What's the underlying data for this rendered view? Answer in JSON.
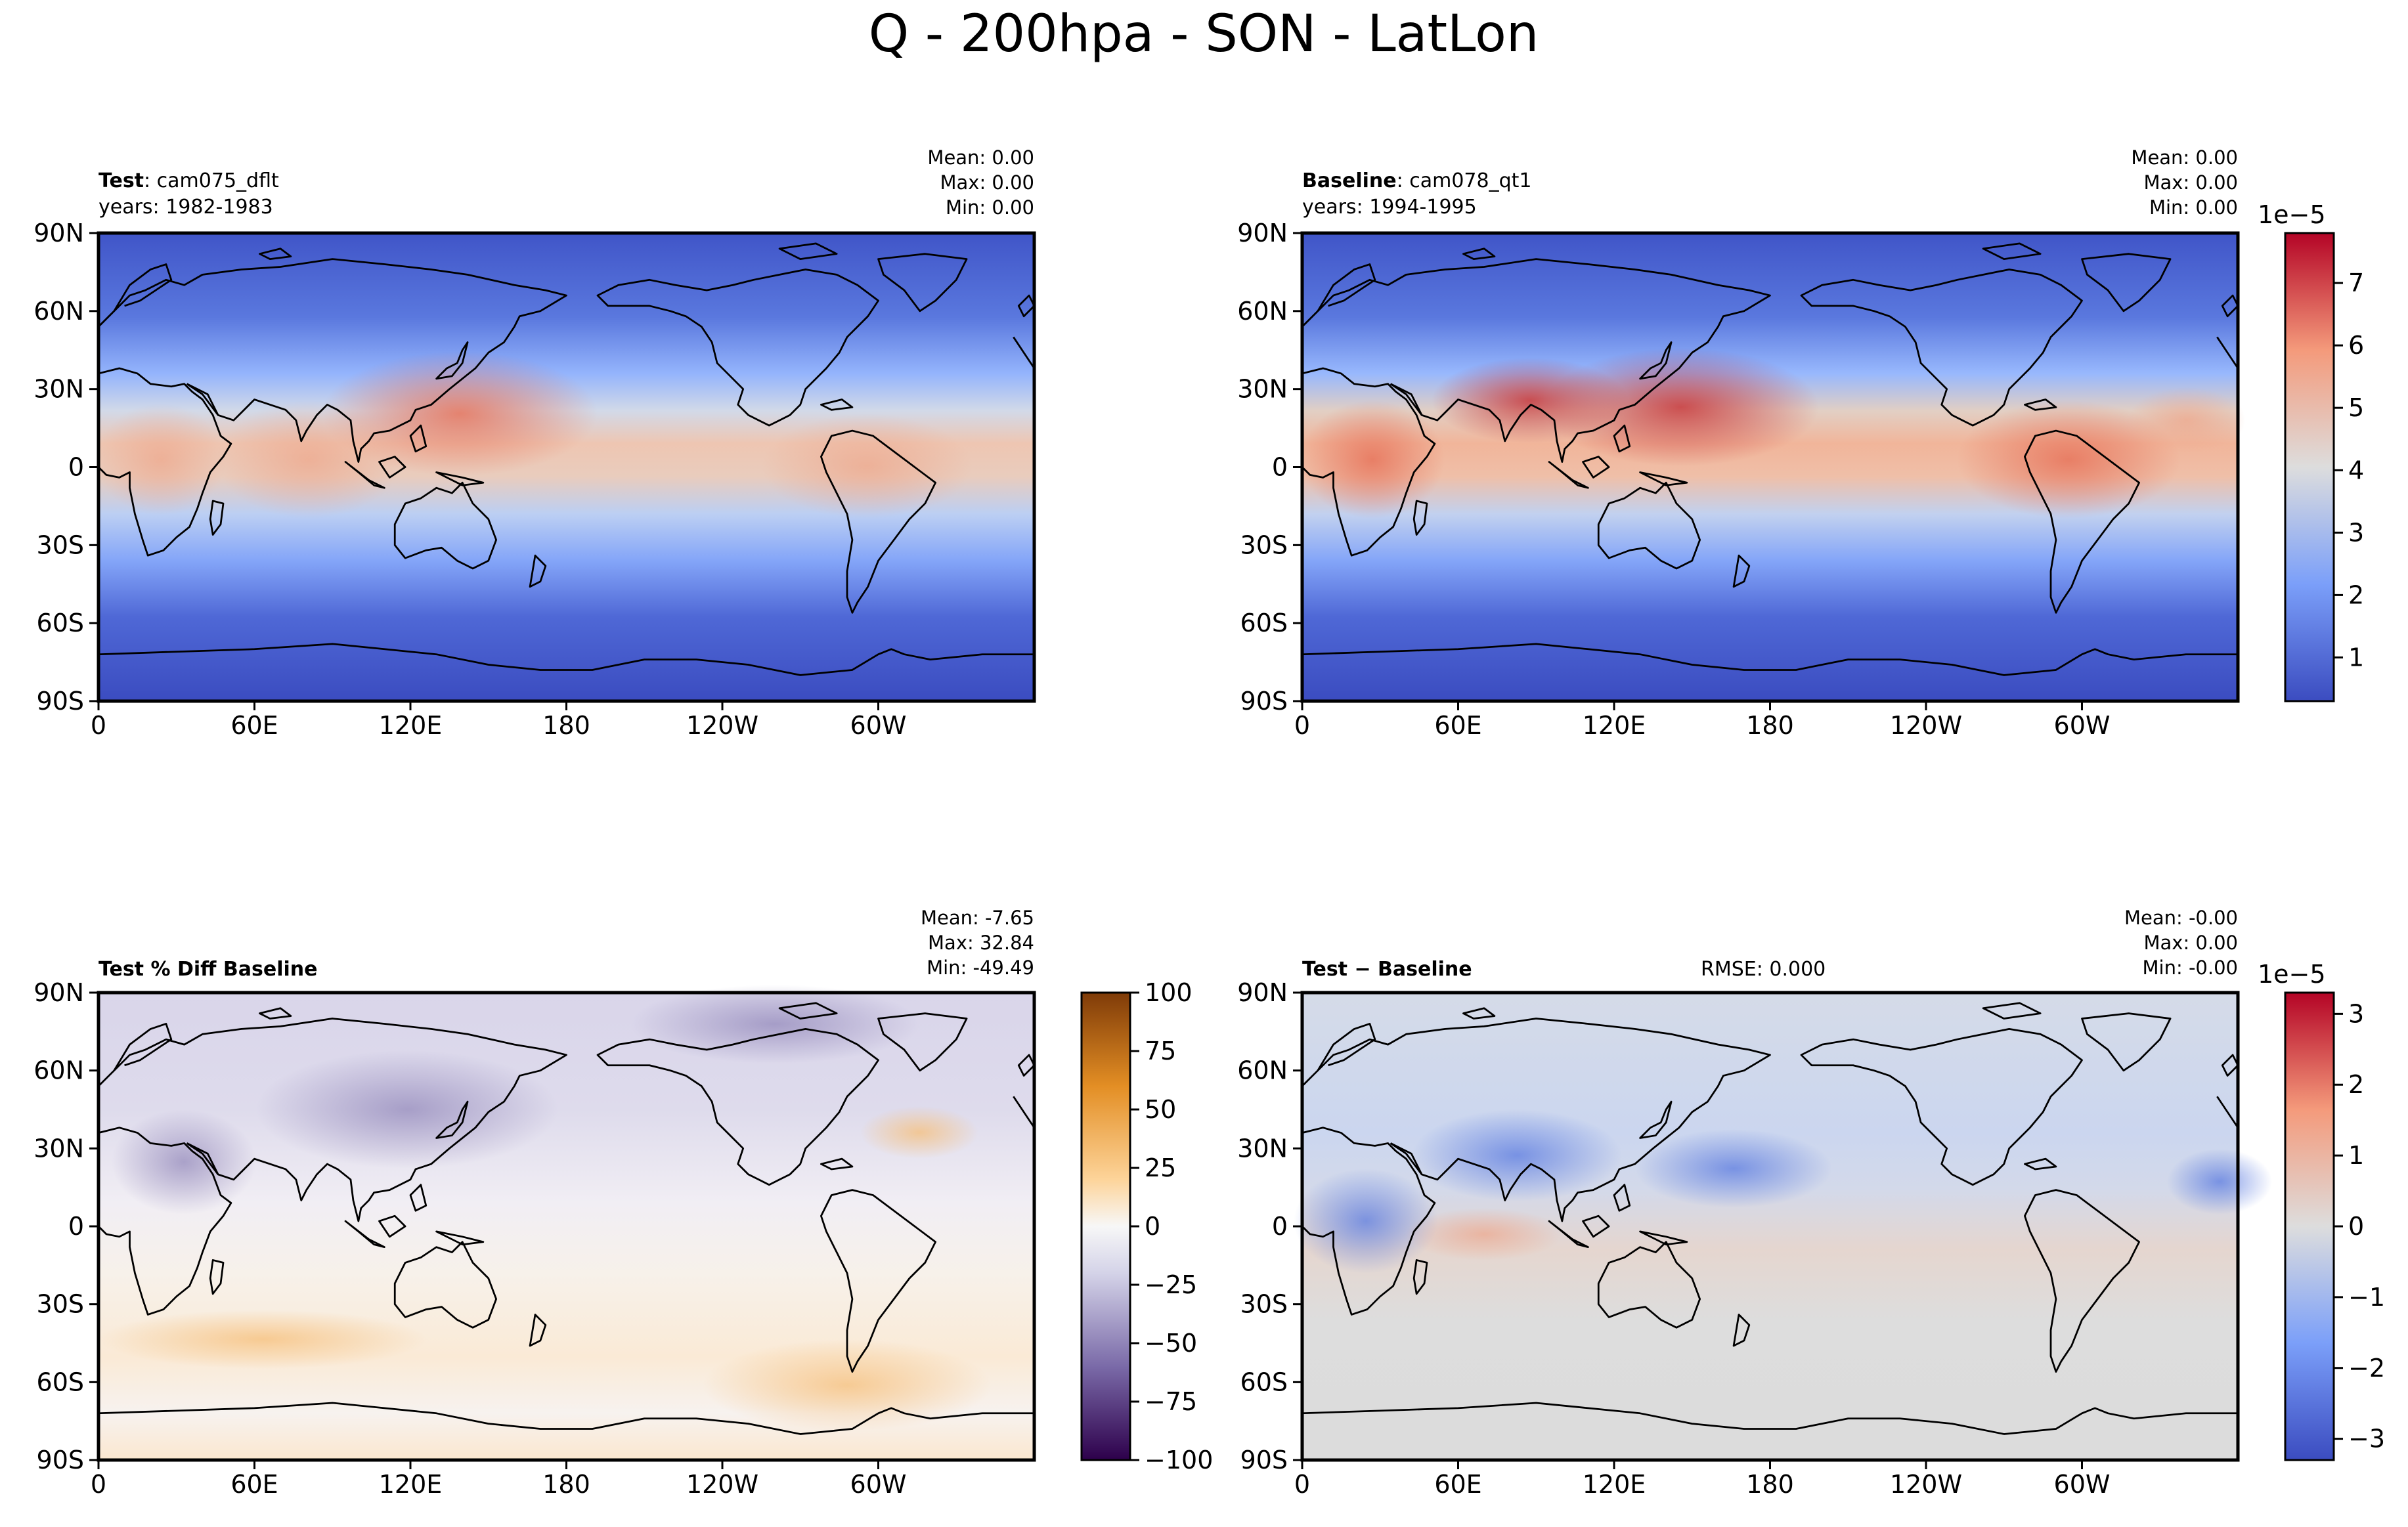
{
  "figure": {
    "title": "Q - 200hpa - SON - LatLon"
  },
  "panels": [
    {
      "id": "test",
      "label_bold": "Test",
      "label_rest": ": cam075_dflt",
      "years": "years: 1982-1983",
      "stats": [
        "Mean:  0.00",
        "Max:  0.00",
        "Min:  0.00"
      ]
    },
    {
      "id": "baseline",
      "label_bold": "Baseline",
      "label_rest": ": cam078_qt1",
      "years": "years: 1994-1995",
      "stats": [
        "Mean:  0.00",
        "Max:  0.00",
        "Min:  0.00"
      ]
    },
    {
      "id": "pctdiff",
      "label_bold": "Test % Diff Baseline",
      "label_rest": "",
      "years": "",
      "stats": [
        "Mean: -7.65",
        "Max: 32.84",
        "Min: -49.49"
      ]
    },
    {
      "id": "diff",
      "label_bold": "Test − Baseline",
      "label_rest": "",
      "years": "",
      "rmse": "RMSE: 0.000",
      "stats": [
        "Mean: -0.00",
        "Max:  0.00",
        "Min: -0.00"
      ]
    }
  ],
  "colorbars": {
    "field": {
      "scale_label": "1e−5",
      "ticks": [
        1,
        2,
        3,
        4,
        5,
        6,
        7
      ],
      "tick_labels": [
        "1",
        "2",
        "3",
        "4",
        "5",
        "6",
        "7"
      ],
      "range": [
        0.3,
        7.8
      ],
      "colormap": "coolwarm"
    },
    "pctdiff": {
      "scale_label": "",
      "ticks": [
        -100,
        -75,
        -50,
        -25,
        0,
        25,
        50,
        75,
        100
      ],
      "tick_labels": [
        "−100",
        "−75",
        "−50",
        "−25",
        "0",
        "25",
        "50",
        "75",
        "100"
      ],
      "range": [
        -100,
        100
      ],
      "colormap": "PuOr_r"
    },
    "diff": {
      "scale_label": "1e−5",
      "ticks": [
        -3,
        -2,
        -1,
        0,
        1,
        2,
        3
      ],
      "tick_labels": [
        "−3",
        "−2",
        "−1",
        "0",
        "1",
        "2",
        "3"
      ],
      "range": [
        -3.3,
        3.3
      ],
      "colormap": "coolwarm"
    }
  },
  "axes": {
    "x_tick_labels": [
      "0",
      "60E",
      "120E",
      "180",
      "120W",
      "60W"
    ],
    "y_tick_labels": [
      "90N",
      "60N",
      "30N",
      "0",
      "30S",
      "60S",
      "90S"
    ],
    "lon_range": [
      0,
      360
    ],
    "lat_range": [
      -90,
      90
    ]
  },
  "chart_data": [
    {
      "type": "heatmap",
      "title": "Test: cam075_dflt",
      "subtitle": "years: 1982-1983",
      "variable": "Q",
      "units_scale": "1e-5",
      "x": "longitude",
      "xlim": [
        0,
        360
      ],
      "y": "latitude",
      "ylim": [
        -90,
        90
      ],
      "approx_zonal_profile": {
        "lat": [
          90,
          60,
          30,
          15,
          0,
          -15,
          -30,
          -60,
          -90
        ],
        "value": [
          0.6,
          1.2,
          3.0,
          5.0,
          5.2,
          4.2,
          2.2,
          1.0,
          0.5
        ]
      },
      "stats": {
        "mean": 0.0,
        "max": 0.0,
        "min": 0.0
      }
    },
    {
      "type": "heatmap",
      "title": "Baseline: cam078_qt1",
      "subtitle": "years: 1994-1995",
      "variable": "Q",
      "units_scale": "1e-5",
      "x": "longitude",
      "xlim": [
        0,
        360
      ],
      "y": "latitude",
      "ylim": [
        -90,
        90
      ],
      "approx_zonal_profile": {
        "lat": [
          90,
          60,
          30,
          15,
          0,
          -15,
          -30,
          -60,
          -90
        ],
        "value": [
          0.6,
          1.2,
          3.2,
          6.0,
          5.6,
          4.5,
          2.2,
          1.0,
          0.5
        ]
      },
      "stats": {
        "mean": 0.0,
        "max": 0.0,
        "min": 0.0
      }
    },
    {
      "type": "heatmap",
      "title": "Test % Diff Baseline",
      "x": "longitude",
      "xlim": [
        0,
        360
      ],
      "y": "latitude",
      "ylim": [
        -90,
        90
      ],
      "color_range": [
        -100,
        100
      ],
      "stats": {
        "mean": -7.65,
        "max": 32.84,
        "min": -49.49
      }
    },
    {
      "type": "heatmap",
      "title": "Test − Baseline",
      "units_scale": "1e-5",
      "x": "longitude",
      "xlim": [
        0,
        360
      ],
      "y": "latitude",
      "ylim": [
        -90,
        90
      ],
      "color_range": [
        -3.3,
        3.3
      ],
      "stats": {
        "mean": -0.0,
        "max": 0.0,
        "min": -0.0,
        "rmse": 0.0
      }
    }
  ]
}
